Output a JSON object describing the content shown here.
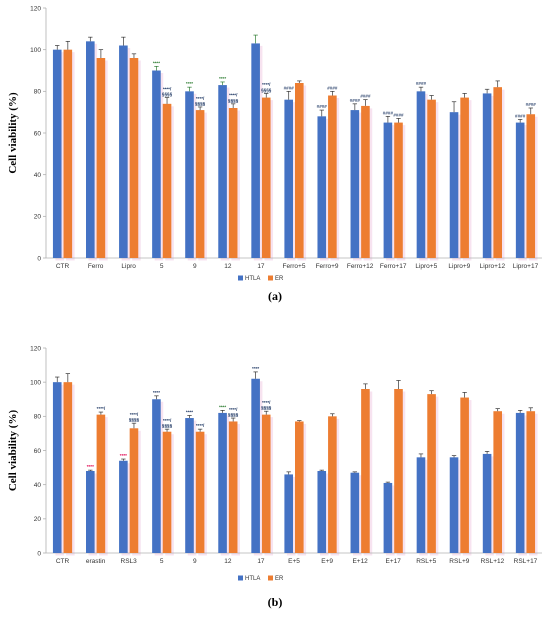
{
  "colors": {
    "htla": "#4472C4",
    "er": "#ED7D31",
    "axis": "#b0b0b0",
    "sig_green": "#2e7d32",
    "sig_red": "#e0004d",
    "sig_blue": "#1f3864"
  },
  "chart_data": [
    {
      "type": "bar",
      "panel_label": "(a)",
      "ylabel": "Cell viability (%)",
      "xlabel": "",
      "ylim": [
        0,
        120
      ],
      "yticks": [
        0,
        20,
        40,
        60,
        80,
        100,
        120
      ],
      "grid": false,
      "legend_position": "bottom",
      "categories": [
        "CTR",
        "Ferro",
        "Lipro",
        "5",
        "9",
        "12",
        "17",
        "Ferro+5",
        "Ferro+9",
        "Ferro+12",
        "Ferro+17",
        "Lipro+5",
        "Lipro+9",
        "Lipro+12",
        "Lipro+17"
      ],
      "series": [
        {
          "name": "HTLA",
          "values": [
            100,
            104,
            102,
            90,
            80,
            83,
            103,
            76,
            68,
            71,
            65,
            80,
            70,
            79,
            65
          ],
          "errors": [
            2,
            2,
            4,
            2,
            2,
            1.5,
            4,
            4,
            3,
            3,
            3,
            2,
            5,
            2,
            1.5
          ]
        },
        {
          "name": "ER",
          "values": [
            100,
            96,
            96,
            74,
            71,
            72,
            77,
            84,
            78,
            73,
            65,
            76,
            77,
            82,
            69
          ],
          "errors": [
            4,
            4,
            2,
            3,
            1.5,
            2,
            2,
            1,
            2,
            3,
            2,
            2,
            2,
            3,
            3
          ]
        }
      ],
      "annotations": [
        {
          "category": "5",
          "series": "HTLA",
          "lines": [
            "****"
          ],
          "color": "sig_green"
        },
        {
          "category": "5",
          "series": "ER",
          "lines": [
            "****/",
            "§§§§"
          ],
          "color": "sig_blue"
        },
        {
          "category": "9",
          "series": "HTLA",
          "lines": [
            "****"
          ],
          "color": "sig_green"
        },
        {
          "category": "9",
          "series": "ER",
          "lines": [
            "****/",
            "§§§§"
          ],
          "color": "sig_blue"
        },
        {
          "category": "12",
          "series": "HTLA",
          "lines": [
            "****"
          ],
          "color": "sig_green"
        },
        {
          "category": "12",
          "series": "ER",
          "lines": [
            "****/",
            "§§§§"
          ],
          "color": "sig_blue"
        },
        {
          "category": "17",
          "series": "ER",
          "lines": [
            "****/",
            "§§§§"
          ],
          "color": "sig_blue"
        },
        {
          "category": "Ferro+5",
          "series": "HTLA",
          "lines": [
            "####"
          ],
          "color": "sig_blue"
        },
        {
          "category": "Ferro+9",
          "series": "HTLA",
          "lines": [
            "####"
          ],
          "color": "sig_blue"
        },
        {
          "category": "Ferro+9",
          "series": "ER",
          "lines": [
            "####"
          ],
          "color": "sig_blue"
        },
        {
          "category": "Ferro+12",
          "series": "HTLA",
          "lines": [
            "####"
          ],
          "color": "sig_blue"
        },
        {
          "category": "Ferro+12",
          "series": "ER",
          "lines": [
            "####"
          ],
          "color": "sig_blue"
        },
        {
          "category": "Ferro+17",
          "series": "HTLA",
          "lines": [
            "####"
          ],
          "color": "sig_blue"
        },
        {
          "category": "Ferro+17",
          "series": "ER",
          "lines": [
            "####"
          ],
          "color": "sig_blue"
        },
        {
          "category": "Lipro+5",
          "series": "HTLA",
          "lines": [
            "####"
          ],
          "color": "sig_blue"
        },
        {
          "category": "Lipro+17",
          "series": "HTLA",
          "lines": [
            "####"
          ],
          "color": "sig_blue"
        },
        {
          "category": "Lipro+17",
          "series": "ER",
          "lines": [
            "####"
          ],
          "color": "sig_blue"
        }
      ]
    },
    {
      "type": "bar",
      "panel_label": "(b)",
      "ylabel": "Cell viability (%)",
      "xlabel": "",
      "ylim": [
        0,
        120
      ],
      "yticks": [
        0,
        20,
        40,
        60,
        80,
        100,
        120
      ],
      "grid": false,
      "legend_position": "bottom",
      "categories": [
        "CTR",
        "erastin",
        "RSL3",
        "5",
        "9",
        "12",
        "17",
        "E+5",
        "E+9",
        "E+12",
        "E+17",
        "RSL+5",
        "RSL+9",
        "RSL+12",
        "RSL+17"
      ],
      "series": [
        {
          "name": "HTLA",
          "values": [
            100,
            48,
            54,
            90,
            79,
            82,
            102,
            46,
            48,
            47,
            41,
            56,
            56,
            58,
            82
          ],
          "errors": [
            3,
            0.5,
            1,
            2,
            1.5,
            1.5,
            4,
            1.5,
            0.5,
            0.5,
            0.5,
            2,
            1,
            1.5,
            1.5
          ]
        },
        {
          "name": "ER",
          "values": [
            100,
            81,
            73,
            71,
            71,
            77,
            81,
            77,
            80,
            96,
            96,
            93,
            91,
            83,
            83
          ],
          "errors": [
            5,
            1.5,
            3,
            1.5,
            1.5,
            2,
            2,
            0.5,
            1.5,
            3,
            5,
            2,
            3,
            1.5,
            2
          ]
        }
      ],
      "annotations": [
        {
          "category": "erastin",
          "series": "HTLA",
          "lines": [
            "****"
          ],
          "color": "sig_red"
        },
        {
          "category": "erastin",
          "series": "ER",
          "lines": [
            "****/"
          ],
          "color": "sig_blue"
        },
        {
          "category": "RSL3",
          "series": "HTLA",
          "lines": [
            "****"
          ],
          "color": "sig_red"
        },
        {
          "category": "RSL3",
          "series": "ER",
          "lines": [
            "****/",
            "§§§§"
          ],
          "color": "sig_blue"
        },
        {
          "category": "5",
          "series": "HTLA",
          "lines": [
            "****"
          ],
          "color": "sig_blue"
        },
        {
          "category": "5",
          "series": "ER",
          "lines": [
            "****/",
            "§§§§"
          ],
          "color": "sig_blue"
        },
        {
          "category": "9",
          "series": "HTLA",
          "lines": [
            "****"
          ],
          "color": "sig_blue"
        },
        {
          "category": "9",
          "series": "ER",
          "lines": [
            "****/"
          ],
          "color": "sig_blue"
        },
        {
          "category": "12",
          "series": "HTLA",
          "lines": [
            "****"
          ],
          "color": "sig_green"
        },
        {
          "category": "12",
          "series": "ER",
          "lines": [
            "****/",
            "§§§§"
          ],
          "color": "sig_blue"
        },
        {
          "category": "17",
          "series": "HTLA",
          "lines": [
            "****"
          ],
          "color": "sig_blue"
        },
        {
          "category": "17",
          "series": "ER",
          "lines": [
            "****/",
            "§§§§"
          ],
          "color": "sig_blue"
        }
      ]
    }
  ]
}
